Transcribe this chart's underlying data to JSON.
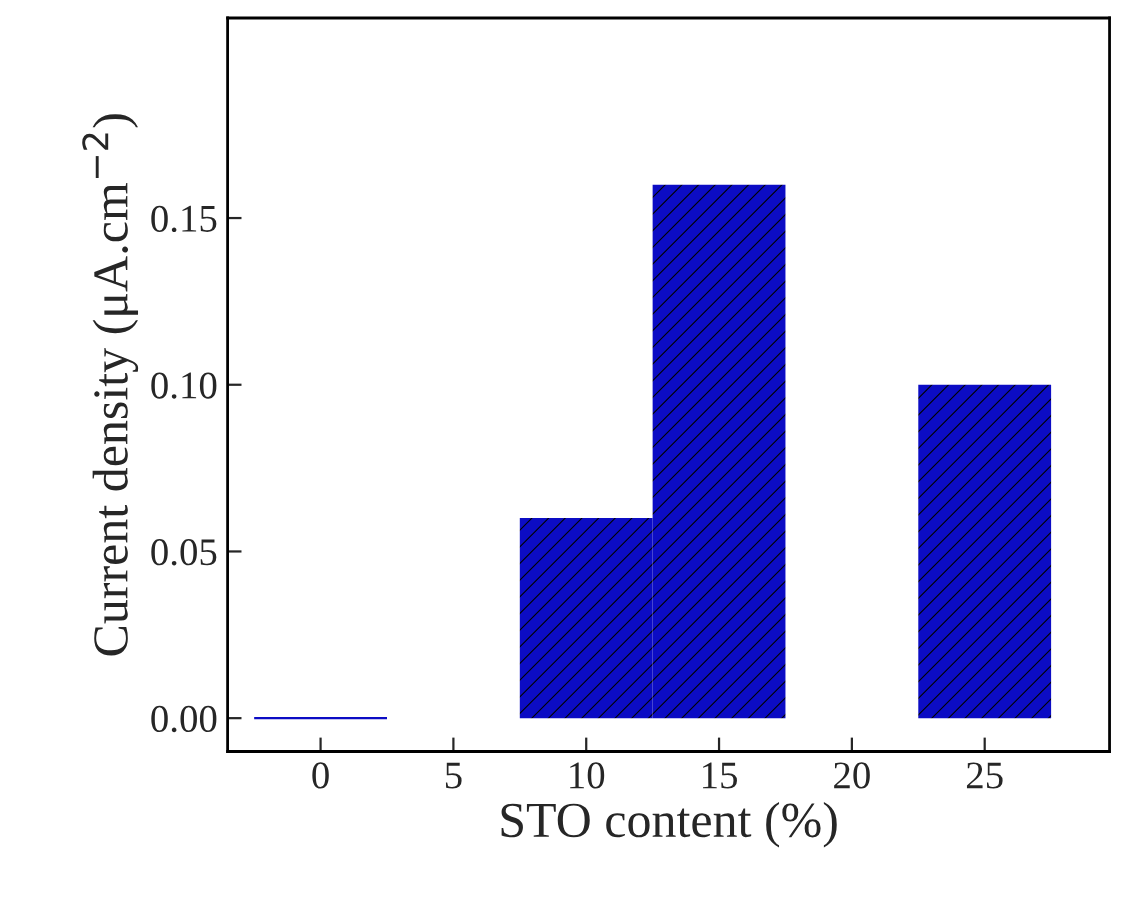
{
  "chart_data": {
    "type": "bar",
    "xlabel": "STO content (%)",
    "ylabel": "Current density (μA.cm$^{−2}$)",
    "x": [
      0,
      10,
      15,
      25
    ],
    "values": [
      0,
      0.06,
      0.16,
      0.1
    ],
    "color": "#0c0cc4",
    "xlim": [
      -3.5,
      29.7
    ],
    "xticks": [
      0,
      5,
      10,
      15,
      20,
      25
    ],
    "ylim": [
      -0.01,
      0.21
    ],
    "yticks": [
      {
        "value": 0,
        "label": "0.00"
      },
      {
        "value": 0.05,
        "label": "0.05"
      },
      {
        "value": 0.1,
        "label": "0.10"
      },
      {
        "value": 0.15,
        "label": "0.15"
      }
    ],
    "grid": false,
    "legend": false
  }
}
